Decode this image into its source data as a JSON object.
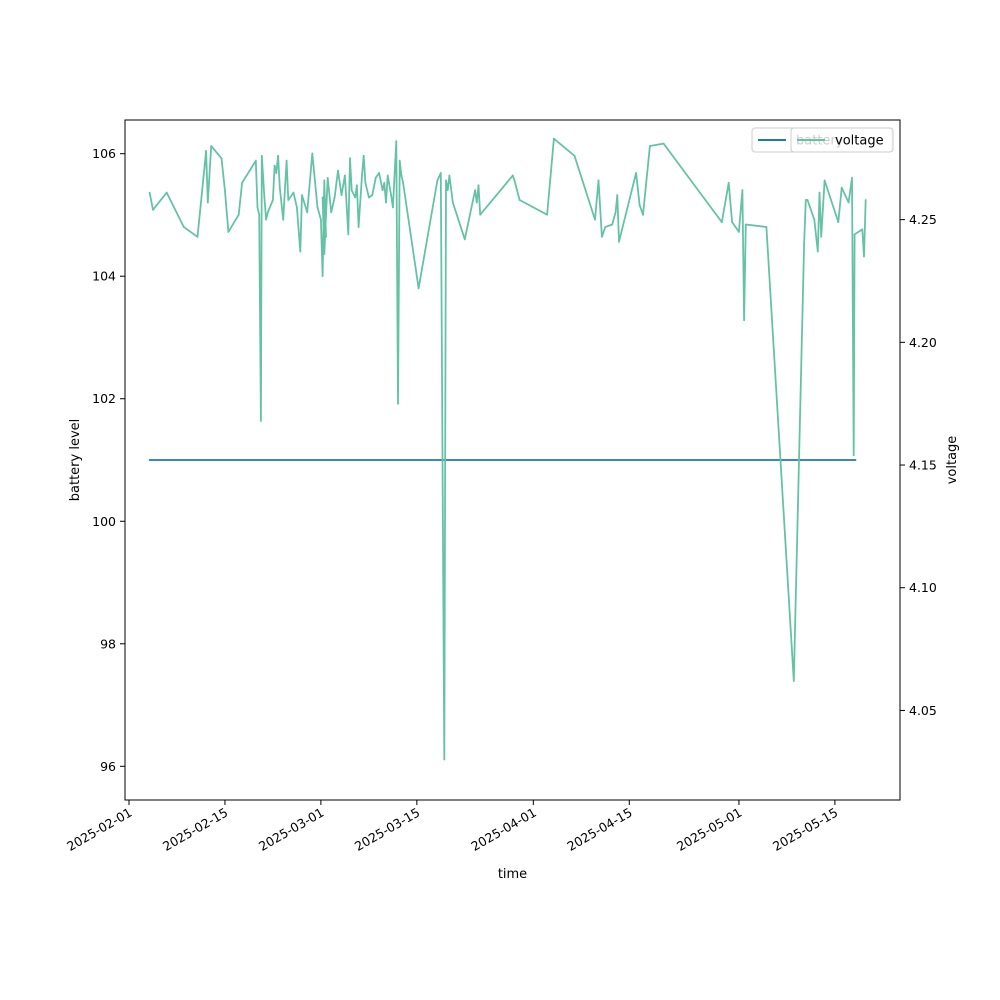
{
  "chart_data": {
    "type": "line",
    "x_axis": {
      "label": "time",
      "range": [
        "2025-01-31T10:00",
        "2025-05-24T12:00"
      ],
      "ticks": [
        "2025-02-01",
        "2025-02-15",
        "2025-03-01",
        "2025-03-15",
        "2025-04-01",
        "2025-04-15",
        "2025-05-01",
        "2025-05-15"
      ]
    },
    "y_left": {
      "label": "battery level",
      "range": [
        95.45,
        106.55
      ],
      "ticks": [
        "96",
        "98",
        "100",
        "102",
        "104",
        "106"
      ]
    },
    "y_right": {
      "label": "voltage",
      "range": [
        4.0135,
        4.2906
      ],
      "ticks": [
        "4.05",
        "4.10",
        "4.15",
        "4.20",
        "4.25"
      ]
    },
    "grid": false,
    "legend_placement": "top-right",
    "legends": [
      {
        "entries": [
          {
            "name": "battery",
            "axis": "left",
            "color": "#1f77b4"
          }
        ]
      },
      {
        "entries": [
          {
            "name": "voltage",
            "axis": "right",
            "color": "#66c2a5"
          }
        ]
      }
    ],
    "series": [
      {
        "name": "battery",
        "axis": "left",
        "color": "#1f77b4",
        "points": [
          [
            "2025-02-04",
            101
          ],
          [
            "2025-05-18",
            101
          ]
        ]
      },
      {
        "name": "voltage",
        "axis": "right",
        "color": "#66c2a5",
        "points": [
          [
            "2025-02-04",
            4.261
          ],
          [
            "2025-02-04T12:00",
            4.254
          ],
          [
            "2025-02-06T12:00",
            4.261
          ],
          [
            "2025-02-09",
            4.247
          ],
          [
            "2025-02-11",
            4.243
          ],
          [
            "2025-02-12",
            4.271
          ],
          [
            "2025-02-12T06:00",
            4.278
          ],
          [
            "2025-02-12T12:00",
            4.257
          ],
          [
            "2025-02-13",
            4.28
          ],
          [
            "2025-02-14T12:00",
            4.275
          ],
          [
            "2025-02-15",
            4.262
          ],
          [
            "2025-02-15T12:00",
            4.245
          ],
          [
            "2025-02-17",
            4.252
          ],
          [
            "2025-02-17T12:00",
            4.265
          ],
          [
            "2025-02-19T12:00",
            4.274
          ],
          [
            "2025-02-19T18:00",
            4.255
          ],
          [
            "2025-02-20",
            4.252
          ],
          [
            "2025-02-20T06:00",
            4.168
          ],
          [
            "2025-02-20T09:00",
            4.276
          ],
          [
            "2025-02-20T18:00",
            4.259
          ],
          [
            "2025-02-21",
            4.25
          ],
          [
            "2025-02-21T06:00",
            4.253
          ],
          [
            "2025-02-22",
            4.258
          ],
          [
            "2025-02-22T06:00",
            4.272
          ],
          [
            "2025-02-22T12:00",
            4.269
          ],
          [
            "2025-02-22T18:00",
            4.276
          ],
          [
            "2025-02-23",
            4.263
          ],
          [
            "2025-02-23T12:00",
            4.25
          ],
          [
            "2025-02-24",
            4.274
          ],
          [
            "2025-02-24T06:00",
            4.258
          ],
          [
            "2025-02-25",
            4.261
          ],
          [
            "2025-02-25T12:00",
            4.255
          ],
          [
            "2025-02-26",
            4.237
          ],
          [
            "2025-02-26T06:00",
            4.26
          ],
          [
            "2025-02-27",
            4.253
          ],
          [
            "2025-02-27T18:00",
            4.277
          ],
          [
            "2025-02-28T12:00",
            4.255
          ],
          [
            "2025-02-29",
            4.25
          ],
          [
            "2025-02-29T06:00",
            4.227
          ],
          [
            "2025-02-29T12:00",
            4.266
          ],
          [
            "2025-02-29T18:00",
            4.243
          ],
          [
            "2025-03-01T06:00",
            4.259
          ],
          [
            "2025-03-01T12:00",
            4.236
          ],
          [
            "2025-03-02",
            4.267
          ],
          [
            "2025-03-02T12:00",
            4.253
          ],
          [
            "2025-03-03",
            4.259
          ],
          [
            "2025-03-03T12:00",
            4.27
          ],
          [
            "2025-03-04",
            4.26
          ],
          [
            "2025-03-04T12:00",
            4.268
          ],
          [
            "2025-03-05",
            4.244
          ],
          [
            "2025-03-05T06:00",
            4.275
          ],
          [
            "2025-03-05T12:00",
            4.262
          ],
          [
            "2025-03-06",
            4.259
          ],
          [
            "2025-03-06T06:00",
            4.264
          ],
          [
            "2025-03-06T12:00",
            4.247
          ],
          [
            "2025-03-07",
            4.268
          ],
          [
            "2025-03-07T06:00",
            4.276
          ],
          [
            "2025-03-07T12:00",
            4.265
          ],
          [
            "2025-03-08",
            4.259
          ],
          [
            "2025-03-08T12:00",
            4.26
          ],
          [
            "2025-03-09",
            4.267
          ],
          [
            "2025-03-09T12:00",
            4.269
          ],
          [
            "2025-03-10",
            4.262
          ],
          [
            "2025-03-10T06:00",
            4.265
          ],
          [
            "2025-03-10T12:00",
            4.257
          ],
          [
            "2025-03-10T18:00",
            4.268
          ],
          [
            "2025-03-11T06:00",
            4.26
          ],
          [
            "2025-03-11T12:00",
            4.255
          ],
          [
            "2025-03-12",
            4.282
          ],
          [
            "2025-03-12T06:00",
            4.175
          ],
          [
            "2025-03-12T12:00",
            4.274
          ],
          [
            "2025-03-12T18:00",
            4.268
          ],
          [
            "2025-03-13",
            4.265
          ],
          [
            "2025-03-15T06:00",
            4.222
          ],
          [
            "2025-03-18",
            4.266
          ],
          [
            "2025-03-18T12:00",
            4.269
          ],
          [
            "2025-03-19",
            4.03
          ],
          [
            "2025-03-19T06:00",
            4.266
          ],
          [
            "2025-03-19T12:00",
            4.262
          ],
          [
            "2025-03-19T18:00",
            4.268
          ],
          [
            "2025-03-20T06:00",
            4.257
          ],
          [
            "2025-03-22",
            4.242
          ],
          [
            "2025-03-23T12:00",
            4.262
          ],
          [
            "2025-03-23T18:00",
            4.257
          ],
          [
            "2025-03-24",
            4.264
          ],
          [
            "2025-03-24T06:00",
            4.252
          ],
          [
            "2025-03-29",
            4.268
          ],
          [
            "2025-03-29T06:00",
            4.266
          ],
          [
            "2025-03-30",
            4.258
          ],
          [
            "2025-04-03",
            4.252
          ],
          [
            "2025-04-04",
            4.283
          ],
          [
            "2025-04-07",
            4.276
          ],
          [
            "2025-04-10",
            4.25
          ],
          [
            "2025-04-10T12:00",
            4.266
          ],
          [
            "2025-04-11",
            4.243
          ],
          [
            "2025-04-11T12:00",
            4.247
          ],
          [
            "2025-04-12T12:00",
            4.248
          ],
          [
            "2025-04-13",
            4.253
          ],
          [
            "2025-04-13T06:00",
            4.26
          ],
          [
            "2025-04-13T12:00",
            4.241
          ],
          [
            "2025-04-16",
            4.269
          ],
          [
            "2025-04-16T12:00",
            4.256
          ],
          [
            "2025-04-17",
            4.252
          ],
          [
            "2025-04-18",
            4.28
          ],
          [
            "2025-04-20",
            4.281
          ],
          [
            "2025-04-28T12:00",
            4.249
          ],
          [
            "2025-04-29T12:00",
            4.265
          ],
          [
            "2025-04-30",
            4.249
          ],
          [
            "2025-05-01",
            4.245
          ],
          [
            "2025-05-01T12:00",
            4.262
          ],
          [
            "2025-05-01T18:00",
            4.209
          ],
          [
            "2025-05-02",
            4.248
          ],
          [
            "2025-05-05",
            4.247
          ],
          [
            "2025-05-09",
            4.062
          ],
          [
            "2025-05-10T12:00",
            4.24
          ],
          [
            "2025-05-10T18:00",
            4.258
          ],
          [
            "2025-05-11",
            4.258
          ],
          [
            "2025-05-12",
            4.25
          ],
          [
            "2025-05-12T12:00",
            4.237
          ],
          [
            "2025-05-12T18:00",
            4.261
          ],
          [
            "2025-05-13",
            4.243
          ],
          [
            "2025-05-13T12:00",
            4.266
          ],
          [
            "2025-05-15T12:00",
            4.249
          ],
          [
            "2025-05-16",
            4.263
          ],
          [
            "2025-05-17",
            4.257
          ],
          [
            "2025-05-17T12:00",
            4.267
          ],
          [
            "2025-05-17T18:00",
            4.154
          ],
          [
            "2025-05-17T21:00",
            4.244
          ],
          [
            "2025-05-19",
            4.246
          ],
          [
            "2025-05-19T06:00",
            4.235
          ],
          [
            "2025-05-19T12:00",
            4.258
          ]
        ]
      }
    ]
  }
}
